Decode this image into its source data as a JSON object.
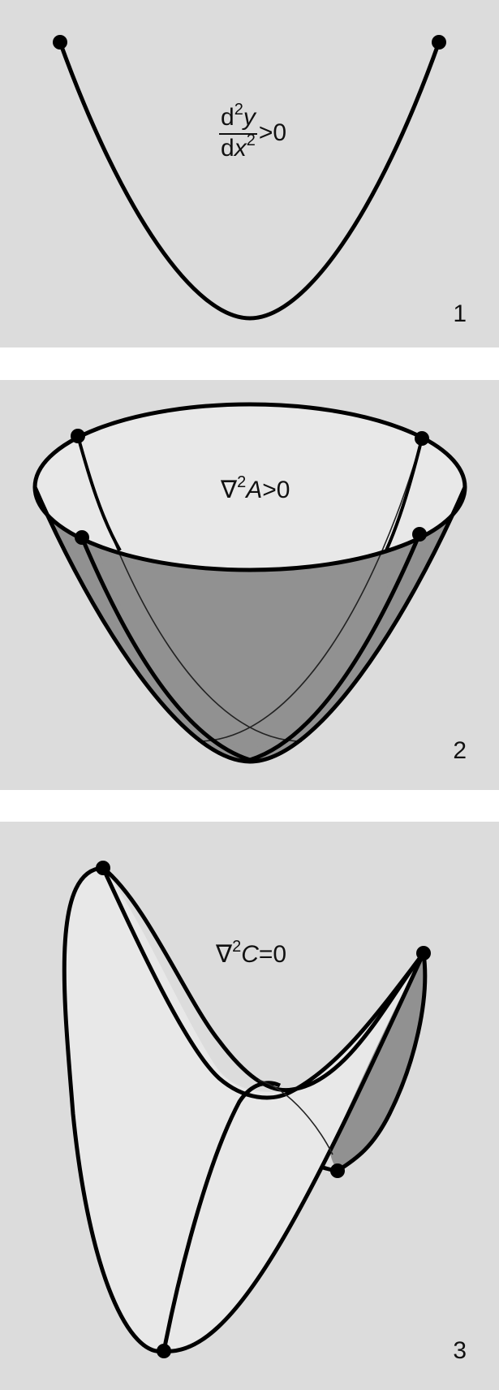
{
  "panels": [
    {
      "number": "1",
      "formula": {
        "num_d": "d",
        "num_sup": "2",
        "num_var": "y",
        "den_d": "d",
        "den_var": "x",
        "den_sup": "2",
        "relation": ">0"
      }
    },
    {
      "number": "2",
      "formula": {
        "op": "∇",
        "sup": "2",
        "var": "A",
        "relation": ">0"
      }
    },
    {
      "number": "3",
      "formula": {
        "op": "∇",
        "sup": "2",
        "var": "C",
        "relation": "=0"
      }
    }
  ],
  "colors": {
    "background": "#dcdcdc",
    "surface_light": "#e8e8e8",
    "surface_dark": "#919191",
    "stroke": "#000000"
  }
}
